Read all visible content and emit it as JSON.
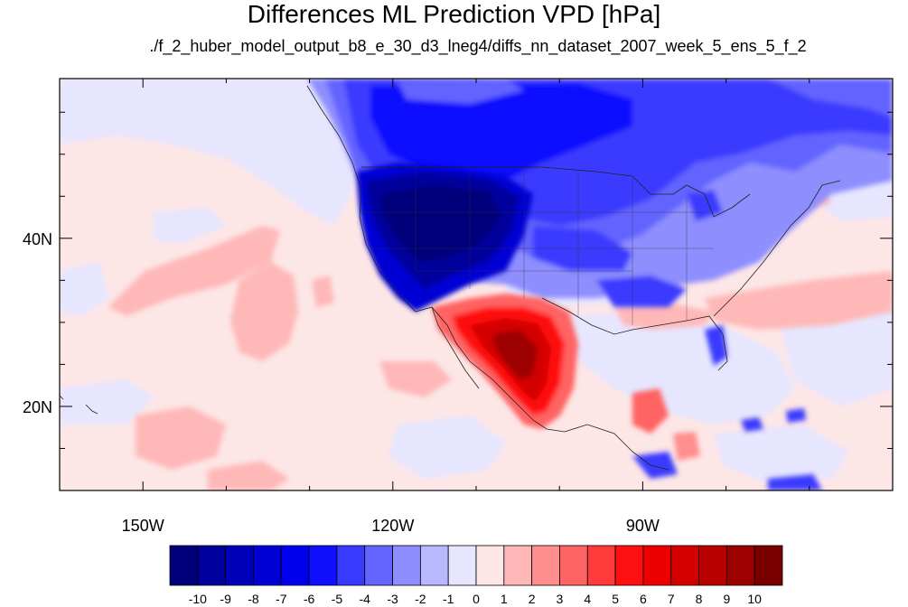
{
  "title": "Differences ML Prediction VPD [hPa]",
  "subtitle": "./f_2_huber_model_output_b8_e_30_d3_lneg4/diffs_nn_dataset_2007_week_5_ens_5_f_2",
  "map": {
    "projection": "cylindrical-equidistant",
    "lon_range": [
      -160,
      -60
    ],
    "lat_range": [
      10,
      59
    ],
    "lon_ticks": [
      {
        "value": -150,
        "label": "150W"
      },
      {
        "value": -120,
        "label": "120W"
      },
      {
        "value": -90,
        "label": "90W"
      }
    ],
    "lat_ticks": [
      {
        "value": 40,
        "label": "40N"
      },
      {
        "value": 20,
        "label": "20N"
      }
    ],
    "ocean_background": "#fde6e6"
  },
  "colorbar": {
    "labels": [
      "-10",
      "-9",
      "-8",
      "-7",
      "-6",
      "-5",
      "-4",
      "-3",
      "-2",
      "-1",
      "0",
      "1",
      "2",
      "3",
      "4",
      "5",
      "6",
      "7",
      "8",
      "9",
      "10"
    ],
    "colors": [
      "#00007a",
      "#00009c",
      "#0000b8",
      "#0000d4",
      "#0000ee",
      "#1010ff",
      "#3a3aff",
      "#6464ff",
      "#8e8eff",
      "#b8b8ff",
      "#e6e6ff",
      "#ffe6e6",
      "#ffb8b8",
      "#ff8e8e",
      "#ff6464",
      "#ff3a3a",
      "#ff1010",
      "#ee0000",
      "#d40000",
      "#b80000",
      "#9c0000",
      "#7a0000"
    ]
  }
}
